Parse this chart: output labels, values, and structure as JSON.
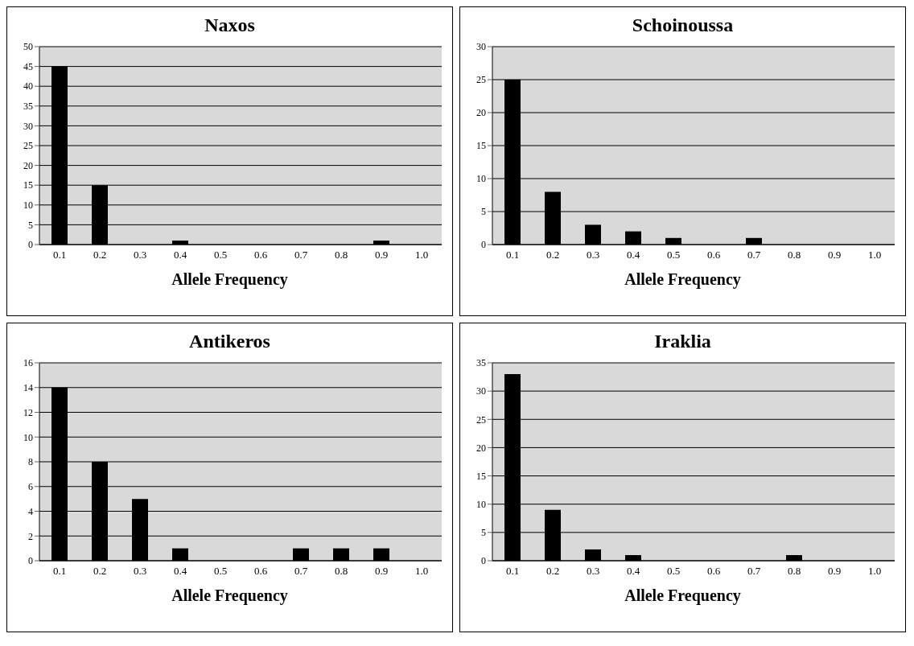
{
  "chart_data": [
    {
      "type": "bar",
      "title": "Naxos",
      "xlabel": "Allele Frequency",
      "categories": [
        "0.1",
        "0.2",
        "0.3",
        "0.4",
        "0.5",
        "0.6",
        "0.7",
        "0.8",
        "0.9",
        "1.0"
      ],
      "values": [
        45,
        15,
        0,
        1,
        0,
        0,
        0,
        0,
        1,
        0
      ],
      "color": "#000000",
      "ylim": [
        0,
        50
      ],
      "yticks": [
        0,
        5,
        10,
        15,
        20,
        25,
        30,
        35,
        40,
        45,
        50
      ],
      "grid": "y"
    },
    {
      "type": "bar",
      "title": "Schoinoussa",
      "xlabel": "Allele Frequency",
      "categories": [
        "0.1",
        "0.2",
        "0.3",
        "0.4",
        "0.5",
        "0.6",
        "0.7",
        "0.8",
        "0.9",
        "1.0"
      ],
      "values": [
        25,
        8,
        3,
        2,
        1,
        0,
        1,
        0,
        0,
        0
      ],
      "color": "#000000",
      "ylim": [
        0,
        30
      ],
      "yticks": [
        0,
        5,
        10,
        15,
        20,
        25,
        30
      ],
      "grid": "y"
    },
    {
      "type": "bar",
      "title": "Antikeros",
      "xlabel": "Allele Frequency",
      "categories": [
        "0.1",
        "0.2",
        "0.3",
        "0.4",
        "0.5",
        "0.6",
        "0.7",
        "0.8",
        "0.9",
        "1.0"
      ],
      "values": [
        14,
        8,
        5,
        1,
        0,
        0,
        1,
        1,
        1,
        0
      ],
      "color": "#000000",
      "ylim": [
        0,
        16
      ],
      "yticks": [
        0,
        2,
        4,
        6,
        8,
        10,
        12,
        14,
        16
      ],
      "grid": "y"
    },
    {
      "type": "bar",
      "title": "Iraklia",
      "xlabel": "Allele Frequency",
      "categories": [
        "0.1",
        "0.2",
        "0.3",
        "0.4",
        "0.5",
        "0.6",
        "0.7",
        "0.8",
        "0.9",
        "1.0"
      ],
      "values": [
        33,
        9,
        2,
        1,
        0,
        0,
        0,
        1,
        0,
        0
      ],
      "color": "#000000",
      "ylim": [
        0,
        35
      ],
      "yticks": [
        0,
        5,
        10,
        15,
        20,
        25,
        30,
        35
      ],
      "grid": "y"
    }
  ]
}
